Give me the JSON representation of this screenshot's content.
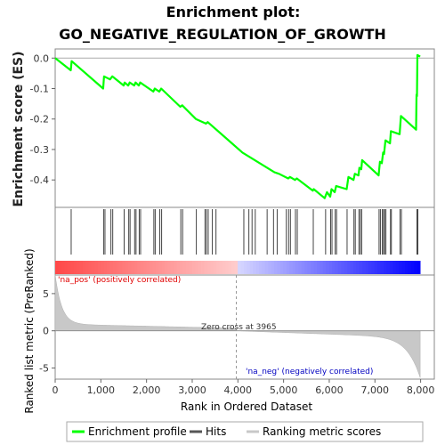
{
  "chart_data": {
    "type": "line",
    "title_line1": "Enrichment plot:",
    "title_line2": "GO_NEGATIVE_REGULATION_OF_GROWTH",
    "es_panel": {
      "ylabel": "Enrichment score (ES)",
      "ylim": [
        -0.49,
        0.03
      ],
      "yticks": [
        0.0,
        -0.1,
        -0.2,
        -0.3,
        -0.4
      ],
      "ytick_labels": [
        "0.0",
        "-0.1",
        "-0.2",
        "-0.3",
        "-0.4"
      ],
      "series": [
        {
          "name": "Enrichment profile",
          "color": "#00ff00",
          "points": [
            [
              0,
              0.0
            ],
            [
              340,
              -0.04
            ],
            [
              360,
              -0.01
            ],
            [
              1050,
              -0.1
            ],
            [
              1070,
              -0.06
            ],
            [
              1200,
              -0.07
            ],
            [
              1250,
              -0.06
            ],
            [
              1500,
              -0.09
            ],
            [
              1520,
              -0.08
            ],
            [
              1600,
              -0.09
            ],
            [
              1630,
              -0.08
            ],
            [
              1730,
              -0.09
            ],
            [
              1760,
              -0.08
            ],
            [
              1830,
              -0.09
            ],
            [
              1860,
              -0.08
            ],
            [
              2150,
              -0.11
            ],
            [
              2180,
              -0.1
            ],
            [
              2280,
              -0.11
            ],
            [
              2320,
              -0.1
            ],
            [
              2740,
              -0.16
            ],
            [
              2780,
              -0.155
            ],
            [
              3080,
              -0.2
            ],
            [
              3300,
              -0.215
            ],
            [
              3340,
              -0.21
            ],
            [
              4100,
              -0.31
            ],
            [
              4800,
              -0.375
            ],
            [
              4900,
              -0.38
            ],
            [
              5100,
              -0.395
            ],
            [
              5140,
              -0.39
            ],
            [
              5250,
              -0.4
            ],
            [
              5290,
              -0.395
            ],
            [
              5640,
              -0.435
            ],
            [
              5660,
              -0.43
            ],
            [
              5900,
              -0.46
            ],
            [
              5950,
              -0.44
            ],
            [
              6020,
              -0.455
            ],
            [
              6050,
              -0.43
            ],
            [
              6120,
              -0.44
            ],
            [
              6150,
              -0.42
            ],
            [
              6380,
              -0.43
            ],
            [
              6420,
              -0.39
            ],
            [
              6530,
              -0.4
            ],
            [
              6560,
              -0.38
            ],
            [
              6640,
              -0.385
            ],
            [
              6660,
              -0.36
            ],
            [
              6700,
              -0.365
            ],
            [
              6720,
              -0.335
            ],
            [
              7080,
              -0.385
            ],
            [
              7110,
              -0.34
            ],
            [
              7150,
              -0.345
            ],
            [
              7180,
              -0.31
            ],
            [
              7200,
              -0.315
            ],
            [
              7230,
              -0.27
            ],
            [
              7330,
              -0.28
            ],
            [
              7350,
              -0.24
            ],
            [
              7540,
              -0.25
            ],
            [
              7570,
              -0.19
            ],
            [
              7900,
              -0.235
            ],
            [
              7910,
              -0.12
            ],
            [
              7920,
              -0.125
            ],
            [
              7930,
              0.01
            ],
            [
              7990,
              0.005
            ]
          ]
        }
      ]
    },
    "hits": [
      350,
      1060,
      1090,
      1220,
      1260,
      1510,
      1610,
      1640,
      1740,
      1770,
      1840,
      1870,
      2160,
      2190,
      2290,
      2330,
      2750,
      2790,
      3090,
      3280,
      3310,
      3350,
      3440,
      3520,
      4130,
      4240,
      4310,
      4380,
      4640,
      4780,
      4860,
      5060,
      5110,
      5150,
      5260,
      5300,
      5650,
      5920,
      6030,
      6060,
      6130,
      6160,
      6390,
      6540,
      6570,
      6650,
      6680,
      6710,
      7090,
      7120,
      7160,
      7190,
      7210,
      7240,
      7340,
      7360,
      7550,
      7580,
      7920,
      7940
    ],
    "ranking_colorbar": {
      "n_genes": 7990,
      "pos_color": "#ff0000",
      "neg_color": "#0000ff",
      "zero_cross_rank": 3965
    },
    "metric_panel": {
      "ylabel": "Ranked list metric (PreRanked)",
      "ylim": [
        -6.5,
        7.5
      ],
      "yticks": [
        5,
        0,
        -5
      ],
      "ytick_labels": [
        "5",
        "0",
        "-5"
      ],
      "max_value": 7.0,
      "min_value": -6.3,
      "label_pos": "'na_pos' (positively correlated)",
      "label_neg": "'na_neg' (negatively correlated)",
      "label_zero": "Zero cross at 3965"
    },
    "xaxis": {
      "xlabel": "Rank in Ordered Dataset",
      "xlim": [
        0,
        8300
      ],
      "xticks": [
        0,
        1000,
        2000,
        3000,
        4000,
        5000,
        6000,
        7000,
        8000
      ],
      "xtick_labels": [
        "0",
        "1,000",
        "2,000",
        "3,000",
        "4,000",
        "5,000",
        "6,000",
        "7,000",
        "8,000"
      ]
    },
    "legend": {
      "placement": "bottom",
      "items": [
        {
          "label": "Enrichment profile",
          "color": "#00ff00"
        },
        {
          "label": "Hits",
          "color": "#555555"
        },
        {
          "label": "Ranking metric scores",
          "color": "#c8c8c8"
        }
      ]
    }
  }
}
